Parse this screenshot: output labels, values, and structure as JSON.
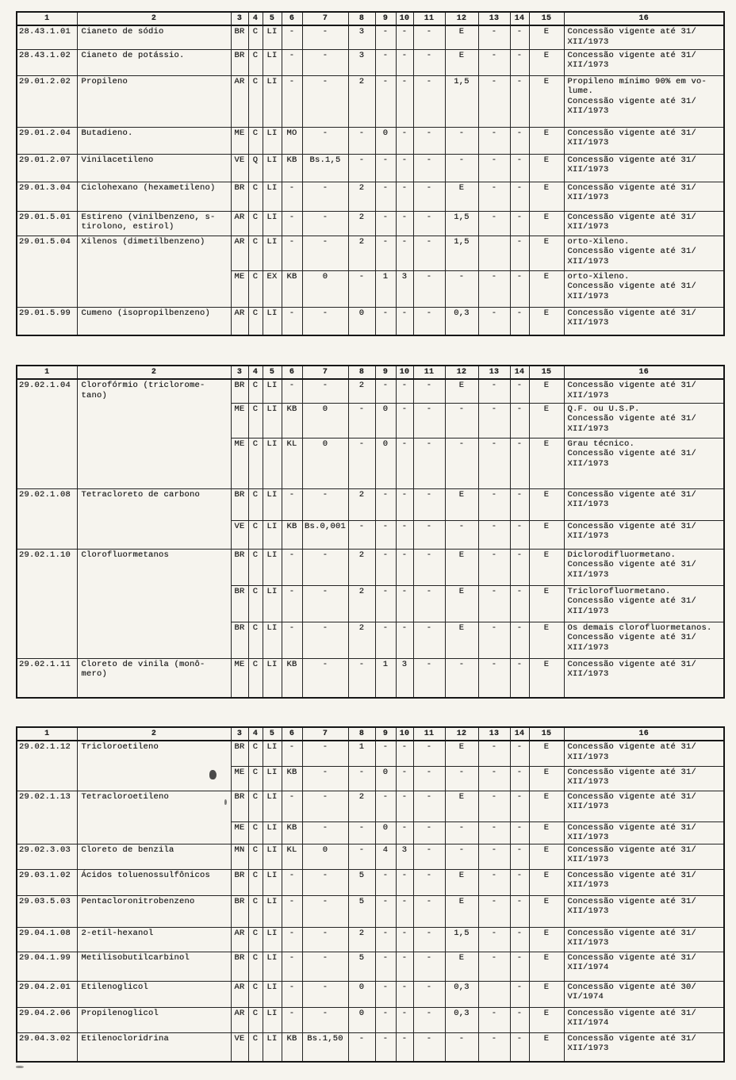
{
  "page": {
    "background": "#f6f4ee",
    "ink": "#1f1f1f",
    "border": "#161616"
  },
  "tables": [
    {
      "headers": [
        "1",
        "2",
        "3",
        "4",
        "5",
        "6",
        "7",
        "8",
        "9",
        "10",
        "11",
        "12",
        "13",
        "14",
        "15",
        "16"
      ],
      "rows": [
        {
          "code": "28.43.1.01",
          "name": "Cianeto de sódio",
          "c": [
            "BR",
            "C",
            "LI",
            "-",
            "-",
            "3",
            "-",
            "-",
            "-",
            "E",
            "-",
            "-",
            "E"
          ],
          "note": "Concessão vigente até 31/\nXII/1973"
        },
        {
          "code": "28.43.1.02",
          "name": "Cianeto de potássio.",
          "c": [
            "BR",
            "C",
            "LI",
            "-",
            "-",
            "3",
            "-",
            "-",
            "-",
            "E",
            "-",
            "-",
            "E"
          ],
          "note": "Concessão vigente até 31/\nXII/1973"
        },
        {
          "code": "29.01.2.02",
          "name": "Propileno",
          "c": [
            "AR",
            "C",
            "LI",
            "-",
            "-",
            "2",
            "-",
            "-",
            "-",
            "1,5",
            "-",
            "-",
            "E"
          ],
          "note": "Propileno mínimo 90% em vo-\nlume.\nConcessão vigente até 31/\nXII/1973"
        },
        {
          "code": "29.01.2.04",
          "name": "Butadieno.",
          "c": [
            "ME",
            "C",
            "LI",
            "MO",
            "-",
            "-",
            "0",
            "-",
            "-",
            "-",
            "-",
            "-",
            "E"
          ],
          "note": "Concessão vigente até 31/\nXII/1973"
        },
        {
          "code": "29.01.2.07",
          "name": "Vinilacetileno",
          "c": [
            "VE",
            "Q",
            "LI",
            "KB",
            "Bs.1,5",
            "-",
            "-",
            "-",
            "-",
            "-",
            "-",
            "-",
            "E"
          ],
          "note": "Concessão vigente até 31/\nXII/1973"
        },
        {
          "code": "29.01.3.04",
          "name": "Ciclohexano (hexametileno)",
          "c": [
            "BR",
            "C",
            "LI",
            "-",
            "-",
            "2",
            "-",
            "-",
            "-",
            "E",
            "-",
            "-",
            "E"
          ],
          "note": "Concessão vigente até 31/\nXII/1973"
        },
        {
          "code": "29.01.5.01",
          "name": "Estireno (vinilbenzeno, s-\ntirolono, estirol)",
          "c": [
            "AR",
            "C",
            "LI",
            "-",
            "-",
            "2",
            "-",
            "-",
            "-",
            "1,5",
            "-",
            "-",
            "E"
          ],
          "note": "Concessão vigente até 31/\nXII/1973"
        },
        {
          "code": "29.01.5.04",
          "name": "Xilenos (dimetilbenzeno)",
          "c": [
            "AR",
            "C",
            "LI",
            "-",
            "-",
            "2",
            "-",
            "-",
            "-",
            "1,5",
            "",
            "-",
            "E"
          ],
          "note": "orto-Xileno.\nConcessão vigente até 31/\nXII/1973"
        },
        {
          "code": "",
          "name": "",
          "c": [
            "ME",
            "C",
            "EX",
            "KB",
            "0",
            "-",
            "1",
            "3",
            "-",
            "-",
            "-",
            "-",
            "E"
          ],
          "note": "orto-Xileno.\nConcessão vigente até 31/\nXII/1973"
        },
        {
          "code": "29.01.5.99",
          "name": "Cumeno (isopropilbenzeno)",
          "c": [
            "AR",
            "C",
            "LI",
            "-",
            "-",
            "0",
            "-",
            "-",
            "-",
            "0,3",
            "-",
            "-",
            "E"
          ],
          "note": "Concessão vigente até 31/\nXII/1973"
        }
      ]
    },
    {
      "headers": [
        "1",
        "2",
        "3",
        "4",
        "5",
        "6",
        "7",
        "8",
        "9",
        "10",
        "11",
        "12",
        "13",
        "14",
        "15",
        "16"
      ],
      "rows": [
        {
          "code": "29.02.1.04",
          "name": "Clorofórmio (triclorome-\ntano)",
          "c": [
            "BR",
            "C",
            "LI",
            "-",
            "-",
            "2",
            "-",
            "-",
            "-",
            "E",
            "-",
            "-",
            "E"
          ],
          "note": "Concessão vigente até 31/\nXII/1973"
        },
        {
          "code": "",
          "name": "",
          "c": [
            "ME",
            "C",
            "LI",
            "KB",
            "0",
            "-",
            "0",
            "-",
            "-",
            "-",
            "-",
            "-",
            "E"
          ],
          "note": "Q.F. ou U.S.P.\nConcessão vigente até 31/\nXII/1973"
        },
        {
          "code": "",
          "name": "",
          "c": [
            "ME",
            "C",
            "LI",
            "KL",
            "0",
            "-",
            "0",
            "-",
            "-",
            "-",
            "-",
            "-",
            "E"
          ],
          "note": "Grau técnico.\nConcessão vigente até 31/\nXII/1973"
        },
        {
          "code": "29.02.1.08",
          "name": "Tetracloreto de carbono",
          "c": [
            "BR",
            "C",
            "LI",
            "-",
            "-",
            "2",
            "-",
            "-",
            "-",
            "E",
            "-",
            "-",
            "E"
          ],
          "note": "Concessão vigente até 31/\nXII/1973"
        },
        {
          "code": "",
          "name": "",
          "c": [
            "VE",
            "C",
            "LI",
            "KB",
            "Bs.0,001",
            "-",
            "-",
            "-",
            "-",
            "-",
            "-",
            "-",
            "E"
          ],
          "note": "Concessão vigente até 31/\nXII/1973"
        },
        {
          "code": "29.02.1.10",
          "name": "Clorofluormetanos",
          "c": [
            "BR",
            "C",
            "LI",
            "-",
            "-",
            "2",
            "-",
            "-",
            "-",
            "E",
            "-",
            "-",
            "E"
          ],
          "note": "Diclorodifluormetano.\nConcessão vigente até 31/\nXII/1973"
        },
        {
          "code": "",
          "name": "",
          "c": [
            "BR",
            "C",
            "LI",
            "-",
            "-",
            "2",
            "-",
            "-",
            "-",
            "E",
            "-",
            "-",
            "E"
          ],
          "note": "Triclorofluormetano.\nConcessão vigente até 31/\nXII/1973"
        },
        {
          "code": "",
          "name": "",
          "c": [
            "BR",
            "C",
            "LI",
            "-",
            "-",
            "2",
            "-",
            "-",
            "-",
            "E",
            "-",
            "-",
            "E"
          ],
          "note": "Os demais clorofluormetanos.\nConcessão vigente até 31/\nXII/1973"
        },
        {
          "code": "29.02.1.11",
          "name": "Cloreto de vinila (monô-\nmero)",
          "c": [
            "ME",
            "C",
            "LI",
            "KB",
            "-",
            "-",
            "1",
            "3",
            "-",
            "-",
            "-",
            "-",
            "E"
          ],
          "note": "Concessão vigente até 31/\nXII/1973"
        }
      ]
    },
    {
      "headers": [
        "1",
        "2",
        "3",
        "4",
        "5",
        "6",
        "7",
        "8",
        "9",
        "10",
        "11",
        "12",
        "13",
        "14",
        "15",
        "16"
      ],
      "rows": [
        {
          "code": "29.02.1.12",
          "name": "Tricloroetileno",
          "c": [
            "BR",
            "C",
            "LI",
            "-",
            "-",
            "1",
            "-",
            "-",
            "-",
            "E",
            "-",
            "-",
            "E"
          ],
          "note": "Concessão vigente até 31/\nXII/1973"
        },
        {
          "code": "",
          "name": "",
          "c": [
            "ME",
            "C",
            "LI",
            "KB",
            "-",
            "-",
            "0",
            "-",
            "-",
            "-",
            "-",
            "-",
            "E"
          ],
          "note": "Concessão vigente até 31/\nXII/1973"
        },
        {
          "code": "29.02.1.13",
          "name": "Tetracloroetileno",
          "c": [
            "BR",
            "C",
            "LI",
            "-",
            "-",
            "2",
            "-",
            "-",
            "-",
            "E",
            "-",
            "-",
            "E"
          ],
          "note": "Concessão vigente até 31/\nXII/1973"
        },
        {
          "code": "",
          "name": "",
          "c": [
            "ME",
            "C",
            "LI",
            "KB",
            "-",
            "-",
            "0",
            "-",
            "-",
            "-",
            "-",
            "-",
            "E"
          ],
          "note": "Concessão vigente até 31/\nXII/1973"
        },
        {
          "code": "29.02.3.03",
          "name": "Cloreto de benzila",
          "c": [
            "MN",
            "C",
            "LI",
            "KL",
            "0",
            "-",
            "4",
            "3",
            "-",
            "-",
            "-",
            "-",
            "E"
          ],
          "note": "Concessão vigente até 31/\nXII/1973"
        },
        {
          "code": "29.03.1.02",
          "name": "Ácidos toluenossulfônicos",
          "c": [
            "BR",
            "C",
            "LI",
            "-",
            "-",
            "5",
            "-",
            "-",
            "-",
            "E",
            "-",
            "-",
            "E"
          ],
          "note": "Concessão vigente até 31/\nXII/1973"
        },
        {
          "code": "29.03.5.03",
          "name": "Pentacloronitrobenzeno",
          "c": [
            "BR",
            "C",
            "LI",
            "-",
            "-",
            "5",
            "-",
            "-",
            "-",
            "E",
            "-",
            "-",
            "E"
          ],
          "note": "Concessão vigente até 31/\nXII/1973"
        },
        {
          "code": "29.04.1.08",
          "name": "2-etil-hexanol",
          "c": [
            "AR",
            "C",
            "LI",
            "-",
            "-",
            "2",
            "-",
            "-",
            "-",
            "1,5",
            "-",
            "-",
            "E"
          ],
          "note": "Concessão vigente até 31/\nXII/1973"
        },
        {
          "code": "29.04.1.99",
          "name": "Metilisobutilcarbinol",
          "c": [
            "BR",
            "C",
            "LI",
            "-",
            "-",
            "5",
            "-",
            "-",
            "-",
            "E",
            "-",
            "-",
            "E"
          ],
          "note": "Concessão vigente até 31/\nXII/1974"
        },
        {
          "code": "29.04.2.01",
          "name": "Etilenoglicol",
          "c": [
            "AR",
            "C",
            "LI",
            "-",
            "-",
            "0",
            "-",
            "-",
            "-",
            "0,3",
            "",
            "-",
            "E"
          ],
          "note": "Concessão vigente até 30/\nVI/1974"
        },
        {
          "code": "29.04.2.06",
          "name": "Propilenoglicol",
          "c": [
            "AR",
            "C",
            "LI",
            "-",
            "-",
            "0",
            "-",
            "-",
            "-",
            "0,3",
            "-",
            "-",
            "E"
          ],
          "note": "Concessão vigente até 31/\nXII/1974"
        },
        {
          "code": "29.04.3.02",
          "name": "Etilenocloridrina",
          "c": [
            "VE",
            "C",
            "LI",
            "KB",
            "Bs.1,50",
            "-",
            "-",
            "-",
            "-",
            "-",
            "-",
            "-",
            "E"
          ],
          "note": "Concessão vigente até 31/\nXII/1973"
        }
      ]
    }
  ]
}
